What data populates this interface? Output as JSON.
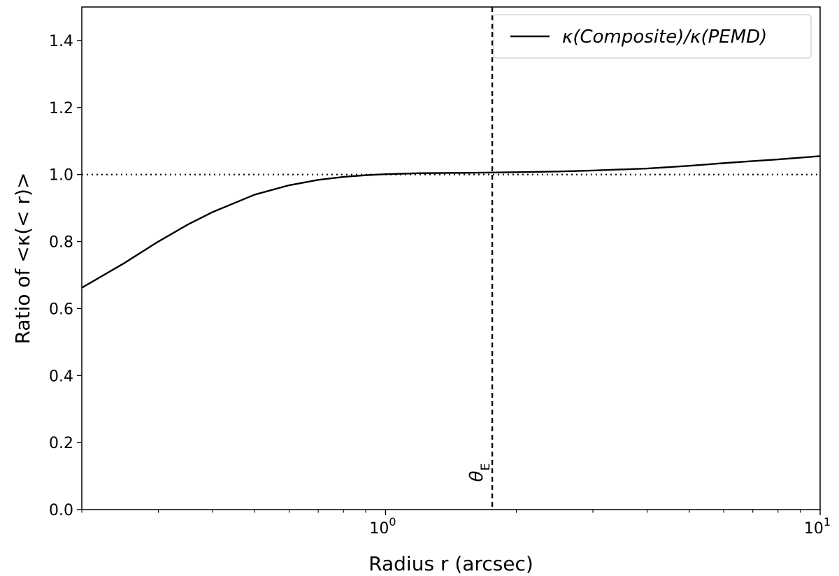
{
  "chart_data": {
    "type": "line",
    "xlabel": "Radius r (arcsec)",
    "ylabel": "Ratio of <κ(< r)>",
    "xscale": "log",
    "xlim": [
      0.2,
      10
    ],
    "ylim": [
      0.0,
      1.5
    ],
    "yticks": [
      "0.0",
      "0.2",
      "0.4",
      "0.6",
      "0.8",
      "1.0",
      "1.2",
      "1.4"
    ],
    "xticks": [
      {
        "base": "10",
        "exp": "0"
      },
      {
        "base": "10",
        "exp": "1"
      }
    ],
    "legend": {
      "position": "top-right"
    },
    "series": [
      {
        "name": "κ(Composite)/κ(PEMD)",
        "color": "#000000",
        "style": "solid",
        "x": [
          0.2,
          0.25,
          0.3,
          0.35,
          0.4,
          0.5,
          0.6,
          0.7,
          0.8,
          0.9,
          1.0,
          1.2,
          1.5,
          1.76,
          2.0,
          2.5,
          3.0,
          4.0,
          5.0,
          6.0,
          7.0,
          8.0,
          10.0
        ],
        "y": [
          0.662,
          0.735,
          0.8,
          0.85,
          0.888,
          0.94,
          0.968,
          0.984,
          0.993,
          0.998,
          1.001,
          1.004,
          1.005,
          1.006,
          1.007,
          1.009,
          1.012,
          1.018,
          1.026,
          1.034,
          1.04,
          1.045,
          1.055
        ]
      }
    ],
    "reference_lines": [
      {
        "orientation": "horizontal",
        "value": 1.0,
        "style": "dotted",
        "color": "#000000"
      },
      {
        "orientation": "vertical",
        "value": 1.76,
        "style": "dashed",
        "color": "#000000",
        "label": "θ",
        "label_sub": "E"
      }
    ]
  }
}
